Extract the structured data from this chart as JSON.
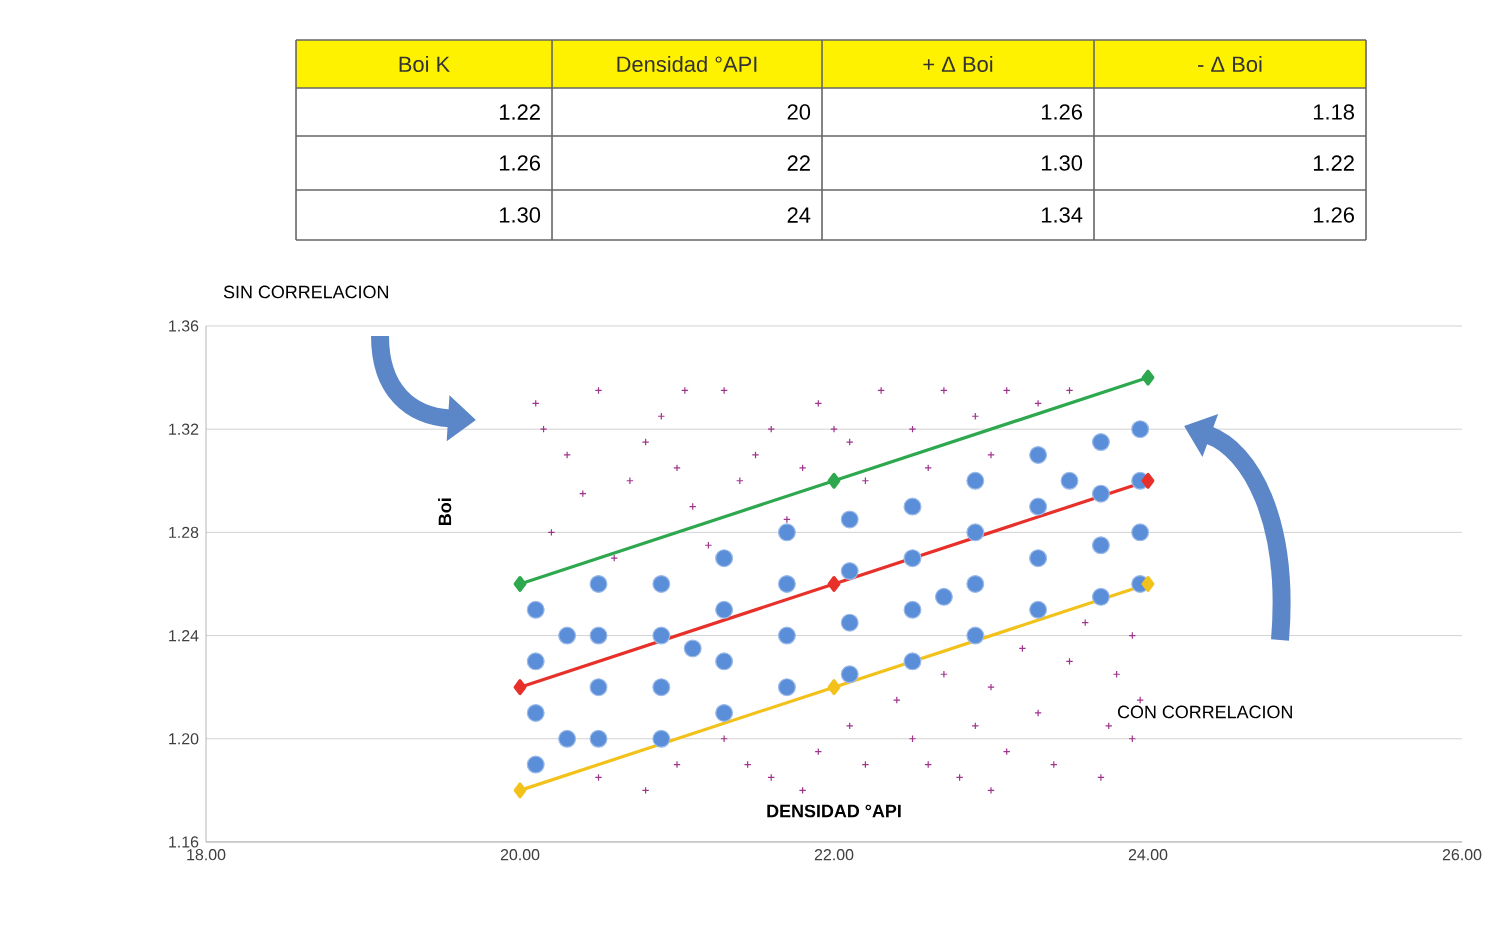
{
  "chart_data": {
    "type": "scatter",
    "xlabel": "DENSIDAD °API",
    "ylabel": "Boi",
    "annotations": [
      "SIN CORRELACION",
      "CON CORRELACION",
      "Boi K",
      "Densidad °API",
      "+ Δ Boi",
      "- Δ Boi",
      "1.22",
      "20",
      "1.26",
      "1.18",
      "1.26",
      "22",
      "1.30",
      "1.22",
      "1.30",
      "24",
      "1.34",
      "1.26"
    ],
    "xlim": [
      18,
      26
    ],
    "ylim": [
      1.16,
      1.36
    ],
    "xticks": [
      {
        "value": 18,
        "label": "18.00"
      },
      {
        "value": 20,
        "label": "20.00"
      },
      {
        "value": 22,
        "label": "22.00"
      },
      {
        "value": 24,
        "label": "24.00"
      },
      {
        "value": 26,
        "label": "26.00"
      }
    ],
    "yticks": [
      {
        "value": 1.16,
        "label": "1.16"
      },
      {
        "value": 1.2,
        "label": "1.20"
      },
      {
        "value": 1.24,
        "label": "1.24"
      },
      {
        "value": 1.28,
        "label": "1.28"
      },
      {
        "value": 1.32,
        "label": "1.32"
      },
      {
        "value": 1.36,
        "label": "1.36"
      }
    ],
    "grid": "y",
    "series": [
      {
        "type": "scatter",
        "marker": "circle",
        "color": "#5b8ed8",
        "x": [
          20.1,
          20.1,
          20.1,
          20.1,
          20.3,
          20.3,
          20.5,
          20.5,
          20.5,
          20.5,
          20.9,
          20.9,
          20.9,
          20.9,
          21.1,
          21.3,
          21.3,
          21.3,
          21.3,
          21.7,
          21.7,
          21.7,
          21.7,
          22.1,
          22.1,
          22.1,
          22.1,
          22.5,
          22.5,
          22.5,
          22.5,
          22.7,
          22.9,
          22.9,
          22.9,
          22.9,
          23.3,
          23.3,
          23.3,
          23.3,
          23.5,
          23.7,
          23.7,
          23.7,
          23.7,
          23.95,
          23.95,
          23.95,
          23.95
        ],
        "values": [
          1.19,
          1.21,
          1.23,
          1.25,
          1.2,
          1.24,
          1.2,
          1.22,
          1.24,
          1.26,
          1.2,
          1.22,
          1.24,
          1.26,
          1.235,
          1.21,
          1.23,
          1.25,
          1.27,
          1.22,
          1.24,
          1.26,
          1.28,
          1.225,
          1.245,
          1.265,
          1.285,
          1.23,
          1.25,
          1.27,
          1.29,
          1.255,
          1.24,
          1.26,
          1.28,
          1.3,
          1.25,
          1.27,
          1.29,
          1.31,
          1.3,
          1.255,
          1.275,
          1.295,
          1.315,
          1.26,
          1.28,
          1.3,
          1.32
        ]
      },
      {
        "type": "scatter",
        "marker": "cross",
        "color": "#a0348c",
        "x": [
          20.1,
          20.3,
          20.5,
          20.7,
          20.9,
          21.1,
          21.3,
          21.5,
          21.7,
          21.9,
          22.1,
          22.3,
          22.5,
          22.7,
          22.9,
          23.1,
          23.3,
          23.5,
          20.2,
          20.4,
          20.6,
          20.8,
          21.0,
          21.2,
          21.4,
          21.6,
          21.8,
          22.0,
          20.15,
          21.05,
          22.2,
          22.6,
          23.0,
          20.5,
          21.0,
          21.3,
          21.6,
          21.9,
          22.2,
          22.5,
          22.8,
          23.1,
          23.4,
          23.7,
          23.9,
          22.4,
          22.7,
          23.0,
          23.2,
          23.5,
          23.8,
          23.3,
          23.6,
          23.9,
          22.9,
          22.1,
          21.8,
          23.0,
          23.95,
          22.6,
          21.45,
          20.8,
          23.75
        ],
        "values": [
          1.33,
          1.31,
          1.335,
          1.3,
          1.325,
          1.29,
          1.335,
          1.31,
          1.285,
          1.33,
          1.315,
          1.335,
          1.32,
          1.335,
          1.325,
          1.335,
          1.33,
          1.335,
          1.28,
          1.295,
          1.27,
          1.315,
          1.305,
          1.275,
          1.3,
          1.32,
          1.305,
          1.32,
          1.32,
          1.335,
          1.3,
          1.305,
          1.31,
          1.185,
          1.19,
          1.2,
          1.185,
          1.195,
          1.19,
          1.2,
          1.185,
          1.195,
          1.19,
          1.185,
          1.2,
          1.215,
          1.225,
          1.22,
          1.235,
          1.23,
          1.225,
          1.21,
          1.245,
          1.24,
          1.205,
          1.205,
          1.18,
          1.18,
          1.215,
          1.19,
          1.19,
          1.18,
          1.205
        ]
      },
      {
        "type": "line",
        "marker": "diamond",
        "color": "#e8302a",
        "x": [
          20,
          22,
          24
        ],
        "values": [
          1.22,
          1.26,
          1.3
        ]
      },
      {
        "type": "line",
        "marker": "diamond",
        "color": "#2ea84f",
        "x": [
          20,
          22,
          24
        ],
        "values": [
          1.26,
          1.3,
          1.34
        ]
      },
      {
        "type": "line",
        "marker": "diamond",
        "color": "#f2c21b",
        "x": [
          20,
          22,
          24
        ],
        "values": [
          1.18,
          1.22,
          1.26
        ]
      }
    ]
  }
}
